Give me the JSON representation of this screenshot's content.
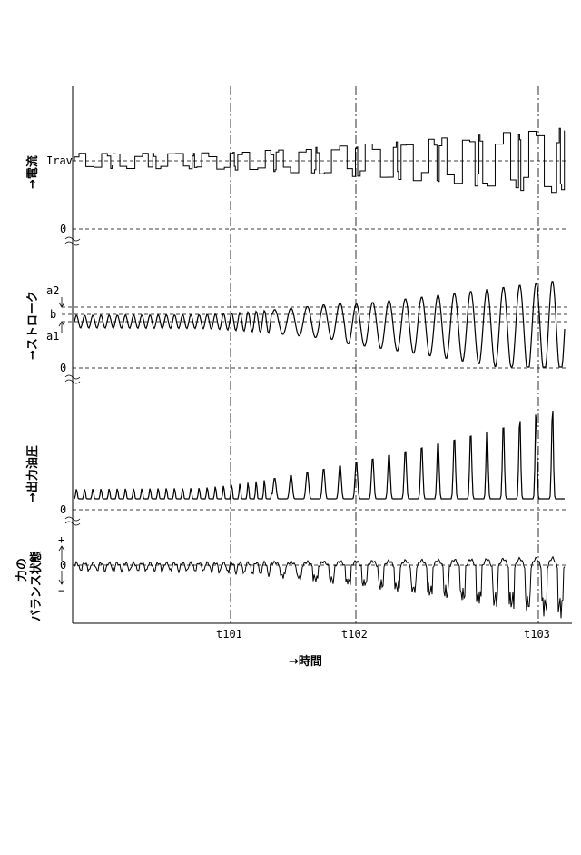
{
  "chart_data": {
    "type": "line",
    "panels": [
      {
        "id": "current",
        "ylabel": "→電流",
        "ticks": [
          "Irav",
          "0"
        ]
      },
      {
        "id": "stroke",
        "ylabel": "→ストローク",
        "ticks": [
          "a2",
          "b",
          "a1",
          "0"
        ]
      },
      {
        "id": "pressure",
        "ylabel": "→出力油圧",
        "ticks": [
          "0"
        ]
      },
      {
        "id": "balance",
        "ylabel": [
          "力の",
          "バランス状態"
        ],
        "ticks": [
          "+",
          "0",
          "−"
        ]
      }
    ],
    "x_ticks": [
      "t101",
      "t102",
      "t103"
    ],
    "xlabel": "→時間",
    "grid": false,
    "series": [
      {
        "panel": "current",
        "description_values": {
          "level": "Irav",
          "amplitude_start": 0.15,
          "amplitude_end": 1.0
        }
      },
      {
        "panel": "stroke",
        "description_values": {
          "center": "a1",
          "amplitude_start": 0.05,
          "amplitude_end": 1.0
        }
      },
      {
        "panel": "pressure",
        "description_values": {
          "baseline": 0,
          "amplitude_start": 0.05,
          "amplitude_end": 1.0
        }
      },
      {
        "panel": "balance",
        "description_values": {
          "center": 0,
          "amplitude_start": 0.1,
          "amplitude_end": 1.0
        }
      }
    ]
  }
}
